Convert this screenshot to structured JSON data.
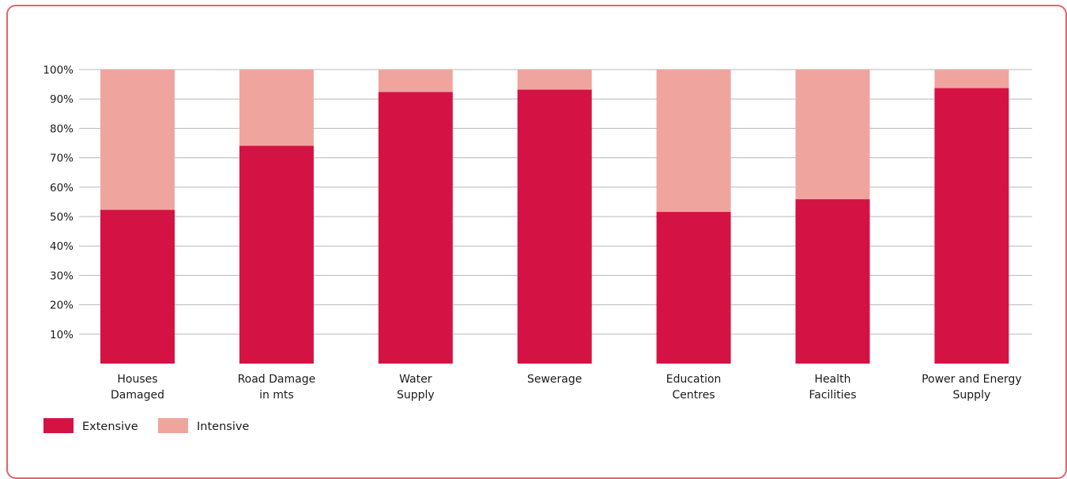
{
  "chart_data": {
    "type": "bar",
    "stacked": true,
    "percent": true,
    "categories": [
      [
        "Houses",
        "Damaged"
      ],
      [
        "Road Damage",
        "in mts"
      ],
      [
        "Water",
        "Supply"
      ],
      [
        "Sewerage"
      ],
      [
        "Education",
        "Centres"
      ],
      [
        "Health",
        "Facilities"
      ],
      [
        "Power and Energy",
        "Supply"
      ]
    ],
    "series": [
      {
        "name": "Extensive",
        "color": "#d41243",
        "values": [
          52.3,
          74.1,
          92.4,
          93.2,
          51.6,
          55.9,
          93.7
        ]
      },
      {
        "name": "Intensive",
        "color": "#efa59e",
        "values": [
          47.7,
          25.9,
          7.6,
          6.8,
          48.4,
          44.1,
          6.3
        ]
      }
    ],
    "yticks": [
      "10%",
      "20%",
      "30%",
      "40%",
      "50%",
      "60%",
      "70%",
      "80%",
      "90%",
      "100%"
    ],
    "ylim": [
      0,
      100
    ],
    "grid": true,
    "legend": "bottom-left",
    "title": "",
    "xlabel": "",
    "ylabel": ""
  }
}
